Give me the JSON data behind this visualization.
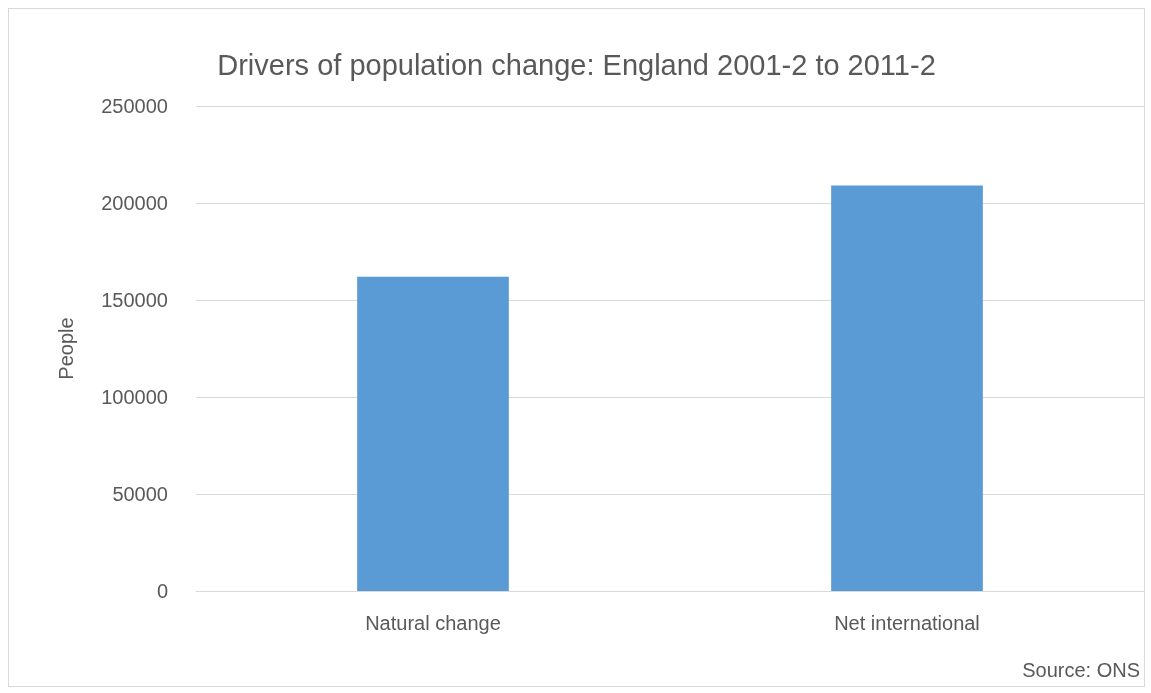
{
  "chart_data": {
    "type": "bar",
    "title": "Drivers of population change: England 2001-2 to 2011-2",
    "ylabel": "People",
    "categories": [
      "Natural change",
      "Net international"
    ],
    "values": [
      162000,
      209000
    ],
    "color": "#5b9bd5",
    "ylim": [
      0,
      250000
    ],
    "yticks": [
      0,
      50000,
      100000,
      150000,
      200000,
      250000
    ],
    "grid": "y",
    "annotations": [
      "Source: ONS"
    ]
  }
}
